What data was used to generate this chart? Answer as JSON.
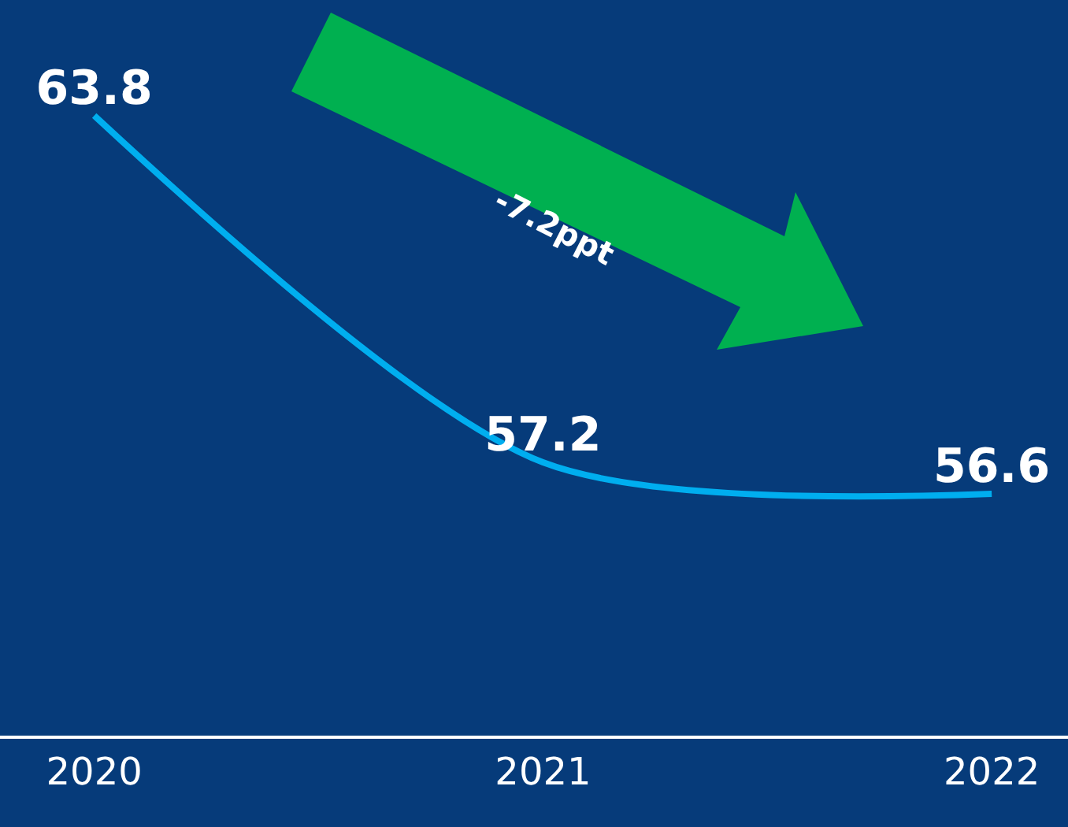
{
  "chart_data": {
    "type": "line",
    "categories": [
      "2020",
      "2021",
      "2022"
    ],
    "series": [
      {
        "color": "#00aeef",
        "values": [
          63.8,
          57.2,
          56.6
        ]
      }
    ],
    "ylim": [
      52,
      66
    ],
    "tick_labels": "x",
    "data_labels": true,
    "marker": "none",
    "annotations": [
      "-7.2ppt"
    ]
  }
}
